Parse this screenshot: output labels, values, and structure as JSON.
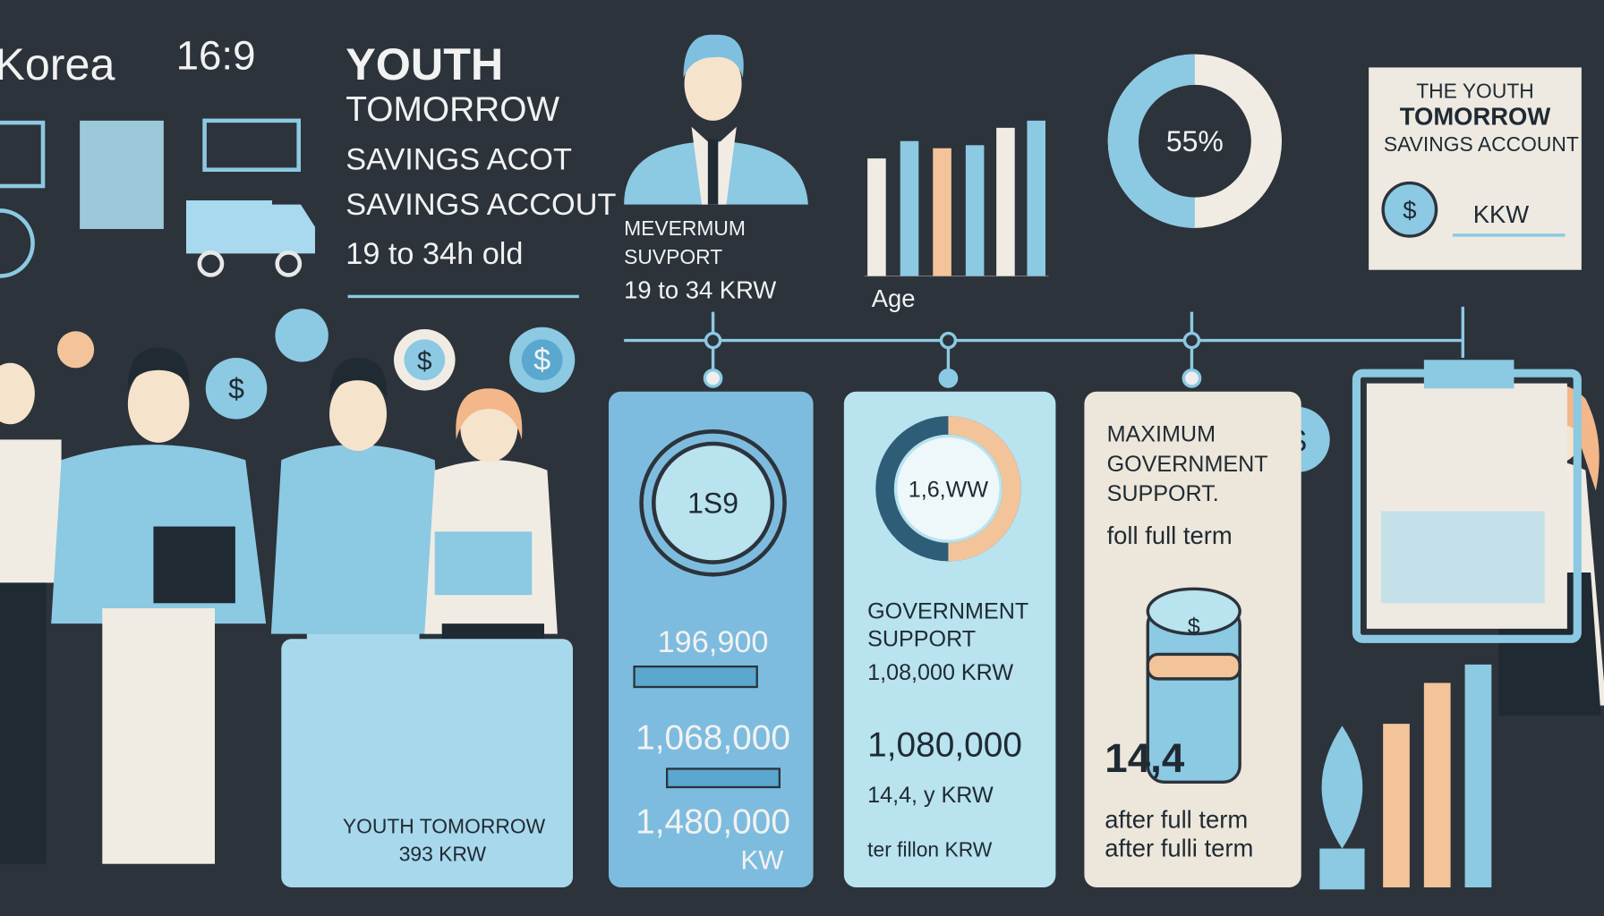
{
  "header": {
    "country": "Korea",
    "ratio": "16:9",
    "title_lines": [
      "YOUTH",
      "TOMORROW",
      "SAVINGS ACOT",
      "SAVINGS ACCOUT"
    ],
    "age_range": "19 to 34h old"
  },
  "profile": {
    "label_lines": [
      "MEVERMUM",
      "SUVPORT"
    ],
    "range": "19 to 34 KRW"
  },
  "age_chart": {
    "label": "Age"
  },
  "donut": {
    "label": "55%"
  },
  "card": {
    "title_lines": [
      "THE YOUTH",
      "TOMORROW",
      "SAVINGS ACCOUNT"
    ],
    "icon": "$",
    "code": "KKW"
  },
  "icons": [
    "$",
    "$",
    "$",
    "$",
    "$"
  ],
  "panels": [
    {
      "dial": "1S9",
      "amounts": [
        "196,900",
        "1,068,000",
        "1,480,000"
      ],
      "unit": "KW"
    },
    {
      "donut": "1,6,WW",
      "heading_lines": [
        "GOVERNMENT",
        "SUPPORT"
      ],
      "amount_line": "1,08,000 KRW",
      "big": "1,080,000",
      "lines": [
        "14,4, y KRW",
        "ter fillon KRW"
      ]
    },
    {
      "heading_lines": [
        "MAXIMUM",
        "GOVERNMENT",
        "SUPPORT."
      ],
      "sub": "foll full term",
      "big": "14,4",
      "lines": [
        "after full term",
        "after fulli term"
      ]
    }
  ],
  "footer": {
    "title": "YOUTH  TOMORROW",
    "amount": "393 KRW"
  }
}
